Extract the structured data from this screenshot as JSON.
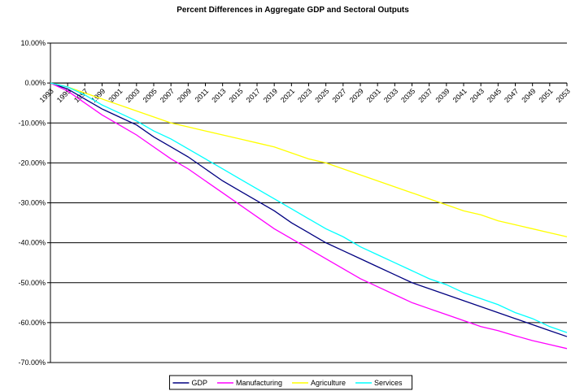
{
  "chart_data": {
    "type": "line",
    "title": "Percent Differences in Aggregate GDP and Sectoral Outputs",
    "x": [
      1993,
      1995,
      1997,
      1999,
      2001,
      2003,
      2005,
      2007,
      2009,
      2011,
      2013,
      2015,
      2017,
      2019,
      2021,
      2023,
      2025,
      2027,
      2029,
      2031,
      2033,
      2035,
      2037,
      2039,
      2041,
      2043,
      2045,
      2047,
      2049,
      2051,
      2053
    ],
    "xlim": [
      1993,
      2053
    ],
    "xticks": [
      1993,
      1995,
      1997,
      1999,
      2001,
      2003,
      2005,
      2007,
      2009,
      2011,
      2013,
      2015,
      2017,
      2019,
      2021,
      2023,
      2025,
      2027,
      2029,
      2031,
      2033,
      2035,
      2037,
      2039,
      2041,
      2043,
      2045,
      2047,
      2049,
      2051,
      2053
    ],
    "ylim": [
      -70,
      10
    ],
    "yticks": [
      {
        "value": 10,
        "label": "10.00%"
      },
      {
        "value": 0,
        "label": "0.00%"
      },
      {
        "value": -10,
        "label": "-10.00%"
      },
      {
        "value": -20,
        "label": "-20.00%"
      },
      {
        "value": -30,
        "label": "-30.00%"
      },
      {
        "value": -40,
        "label": "-40.00%"
      },
      {
        "value": -50,
        "label": "-50.00%"
      },
      {
        "value": -60,
        "label": "-60.00%"
      },
      {
        "value": -70,
        "label": "-70.00%"
      }
    ],
    "grid": true,
    "legend": "bottom",
    "series": [
      {
        "name": "GDP",
        "color": "#000080",
        "values": [
          0,
          -1.5,
          -4,
          -6.5,
          -8.5,
          -10.5,
          -13.5,
          -16,
          -18.5,
          -21.5,
          -24.5,
          -27,
          -29.5,
          -32,
          -35,
          -37.5,
          -40,
          -42,
          -44,
          -46,
          -48,
          -50,
          -51.5,
          -53,
          -54.5,
          -56,
          -57.5,
          -59,
          -60.5,
          -62,
          -63.5
        ]
      },
      {
        "name": "Manufacturing",
        "color": "#ff00ff",
        "values": [
          0,
          -2,
          -5,
          -8,
          -10.5,
          -13,
          -16,
          -19,
          -21.5,
          -24.5,
          -27.5,
          -30.5,
          -33.5,
          -36.5,
          -39,
          -41.5,
          -44,
          -46.5,
          -49,
          -51,
          -53,
          -55,
          -56.5,
          -58,
          -59.5,
          -61,
          -62,
          -63.3,
          -64.5,
          -65.5,
          -66.5
        ]
      },
      {
        "name": "Agriculture",
        "color": "#ffff00",
        "values": [
          0,
          -1,
          -2.5,
          -4,
          -5.5,
          -7,
          -8.5,
          -10,
          -11,
          -12,
          -13,
          -14,
          -15,
          -16,
          -17.5,
          -19,
          -20,
          -21.5,
          -23,
          -24.5,
          -26,
          -27.5,
          -29,
          -30.5,
          -32,
          -33,
          -34.5,
          -35.5,
          -36.5,
          -37.5,
          -38.5
        ]
      },
      {
        "name": "Services",
        "color": "#00ffff",
        "values": [
          0,
          -1,
          -3,
          -5.5,
          -7.5,
          -9.5,
          -12,
          -14,
          -16.5,
          -19,
          -21.5,
          -24,
          -26.5,
          -29,
          -31.5,
          -34,
          -36.5,
          -38.5,
          -41,
          -43,
          -45,
          -47,
          -49,
          -50.5,
          -52.5,
          -54,
          -55.5,
          -57.5,
          -59,
          -61,
          -62.5
        ]
      }
    ]
  }
}
